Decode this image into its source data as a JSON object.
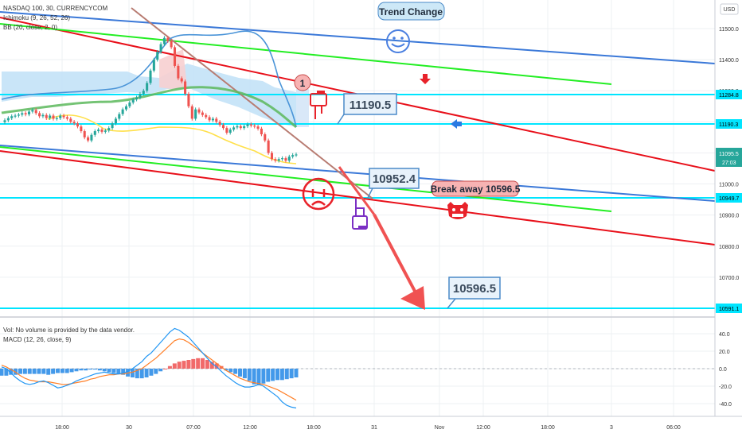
{
  "header": {
    "symbol_line": "NASDAQ 100, 30, CURRENCYCOM",
    "indicator_1": "Ichimoku (9, 26, 52, 26)",
    "indicator_2": "BB (20, close, 2, 0)",
    "currency": "USD"
  },
  "price_axis": {
    "ticks": [
      "11500.0",
      "11400.0",
      "11300.0",
      "11200.0",
      "11100.0",
      "11000.0",
      "10900.0",
      "10800.0",
      "10700.0",
      "10600.0"
    ],
    "level_labels": [
      "11284.8",
      "11190.3",
      "11095.5",
      "27:03",
      "10949.7",
      "10591.1"
    ]
  },
  "annotations": {
    "trend_change": "Trend Change",
    "circle_number": "1",
    "target_1": "11190.5",
    "target_2": "10952.4",
    "break_away": "Break away 10596.5",
    "target_3": "10596.5"
  },
  "lower_pane": {
    "vol_label": "Vol: No volume is provided by the data vendor.",
    "macd_label": "MACD (12, 26, close, 9)",
    "ticks": [
      "40.0",
      "20.0",
      "0.0",
      "-20.0",
      "-40.0"
    ]
  },
  "time_axis": {
    "labels": [
      "18:00",
      "30",
      "07:00",
      "12:00",
      "18:00",
      "31",
      "Nov",
      "12:00",
      "18:00",
      "3",
      "06:00"
    ]
  },
  "colors": {
    "cyan_level": "#00e5ff",
    "blue_channel": "#3a78d8",
    "red_channel": "#e8101a",
    "green_channel": "#22ee22",
    "up_candle": "#26a69a",
    "down_candle": "#ef5350",
    "macd_line": "#2196f3",
    "signal_line": "#ff7f27"
  },
  "chart_data": [
    {
      "type": "candlestick",
      "title": "NASDAQ 100, 30, CURRENCYCOM",
      "ylim": [
        10570,
        11560
      ],
      "y_ticks": [
        10600,
        10700,
        10800,
        10900,
        11000,
        11100,
        11200,
        11300,
        11400,
        11500
      ],
      "close": [
        11205,
        11212,
        11218,
        11220,
        11223,
        11228,
        11224,
        11233,
        11238,
        11228,
        11218,
        11222,
        11212,
        11220,
        11210,
        11212,
        11220,
        11215,
        11210,
        11200,
        11195,
        11185,
        11170,
        11150,
        11140,
        11158,
        11170,
        11175,
        11168,
        11172,
        11180,
        11195,
        11210,
        11225,
        11240,
        11250,
        11262,
        11272,
        11278,
        11290,
        11300,
        11325,
        11365,
        11400,
        11425,
        11450,
        11470,
        11460,
        11440,
        11380,
        11340,
        11330,
        11290,
        11250,
        11210,
        11240,
        11230,
        11222,
        11215,
        11205,
        11210,
        11200,
        11190,
        11180,
        11165,
        11175,
        11182,
        11186,
        11180,
        11186,
        11192,
        11188,
        11185,
        11178,
        11160,
        11140,
        11100,
        11080,
        11075,
        11080,
        11083,
        11075,
        11088,
        11093,
        11095
      ],
      "horizontal_levels": [
        11284.8,
        11190.3,
        10949.7,
        10591.1
      ],
      "last_price": 11095.5,
      "annotated_targets": [
        11190.5,
        10952.4,
        10596.5
      ]
    },
    {
      "type": "bar",
      "title": "MACD (12, 26, close, 9)",
      "ylim": [
        -50,
        48
      ],
      "y_ticks": [
        40,
        20,
        0,
        -20,
        -40
      ],
      "series": [
        {
          "name": "MACD",
          "values": [
            2,
            0,
            -5,
            -10,
            -14,
            -17,
            -18,
            -17,
            -15,
            -14,
            -16,
            -19,
            -22,
            -21,
            -19,
            -17,
            -14,
            -12,
            -10,
            -8,
            -6,
            -5,
            -4,
            -5,
            -6,
            -6,
            -5,
            -3,
            0,
            4,
            8,
            14,
            18,
            24,
            30,
            36,
            42,
            46,
            44,
            40,
            36,
            30,
            24,
            18,
            12,
            6,
            2,
            -3,
            -8,
            -12,
            -16,
            -19,
            -21,
            -21,
            -20,
            -18,
            -20,
            -24,
            -28,
            -32,
            -38,
            -42,
            -44,
            -45
          ]
        },
        {
          "name": "Signal",
          "values": [
            4,
            2,
            -1,
            -4,
            -8,
            -11,
            -13,
            -14,
            -15,
            -15,
            -15,
            -16,
            -17,
            -18,
            -18,
            -17,
            -16,
            -15,
            -14,
            -12,
            -11,
            -9,
            -8,
            -7,
            -7,
            -6,
            -6,
            -5,
            -4,
            -2,
            0,
            4,
            8,
            12,
            17,
            22,
            27,
            32,
            34,
            33,
            30,
            26,
            22,
            18,
            14,
            10,
            6,
            2,
            -2,
            -5,
            -8,
            -11,
            -13,
            -15,
            -16,
            -17,
            -18,
            -20,
            -22,
            -24,
            -27,
            -30,
            -33,
            -36
          ]
        },
        {
          "name": "Histogram",
          "values": [
            -8,
            -8,
            -7,
            -7,
            -6,
            -6,
            -6,
            -6,
            -6,
            -6,
            -7,
            -6,
            -5,
            -5,
            -5,
            -4,
            -3,
            -2,
            -2,
            -1,
            -1,
            -2,
            -3,
            -4,
            -5,
            -6,
            -7,
            -9,
            -10,
            -11,
            -11,
            -10,
            -8,
            -6,
            -3,
            0,
            3,
            6,
            8,
            9,
            10,
            11,
            12,
            12,
            10,
            8,
            6,
            3,
            -2,
            -4,
            -6,
            -9,
            -11,
            -14,
            -18,
            -19,
            -17,
            -15,
            -14,
            -13,
            -13,
            -12,
            -11,
            -10
          ]
        }
      ]
    }
  ]
}
